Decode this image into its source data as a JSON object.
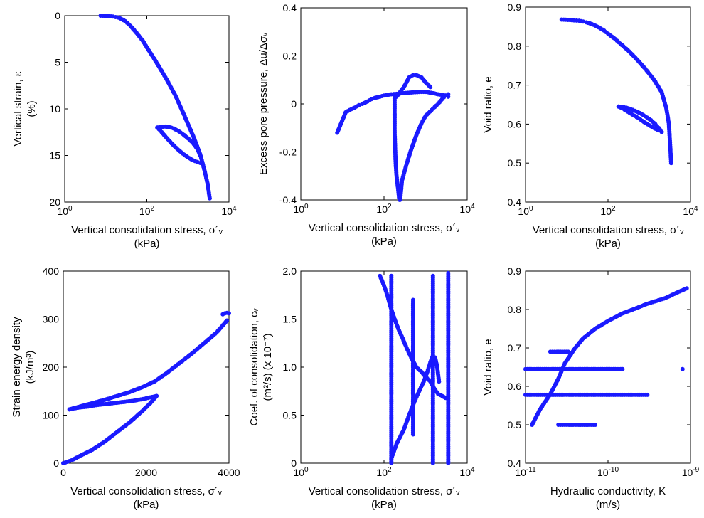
{
  "figure": {
    "title": "",
    "marker_color": "#1a1aff",
    "axis_color": "#000000"
  },
  "chart_data": [
    {
      "id": "strain",
      "type": "scatter",
      "xscale": "log",
      "xlim": [
        1,
        10000
      ],
      "ylim": [
        0,
        20
      ],
      "y_inverted": true,
      "xticks": [
        {
          "v": 1,
          "base": "10",
          "exp": "0"
        },
        {
          "v": 100,
          "base": "10",
          "exp": "2"
        },
        {
          "v": 10000,
          "base": "10",
          "exp": "4"
        }
      ],
      "yticks": [
        0,
        5,
        10,
        15,
        20
      ],
      "xlabel": [
        "Vertical consolidation stress, σ´ᵥ",
        "(kPa)"
      ],
      "ylabel": [
        "Vertical strain, ε",
        "(%)"
      ],
      "series": [
        {
          "x": [
            7.5,
            12,
            15,
            20,
            25,
            30,
            40,
            60,
            80,
            100,
            150,
            200,
            300,
            500,
            800,
            1000,
            1400,
            2000,
            2600,
            3000,
            3400
          ],
          "y": [
            0,
            0.05,
            0.1,
            0.2,
            0.4,
            0.6,
            1.1,
            2.0,
            2.7,
            3.4,
            4.6,
            5.5,
            6.8,
            8.6,
            10.6,
            11.6,
            13.1,
            14.9,
            16.8,
            18.0,
            19.6
          ]
        },
        {
          "x": [
            2000,
            1700,
            1400,
            1100,
            800,
            600,
            450,
            350,
            280,
            220,
            180
          ],
          "y": [
            15.0,
            14.3,
            13.8,
            13.3,
            12.8,
            12.4,
            12.1,
            11.95,
            11.9,
            11.95,
            12.0
          ]
        },
        {
          "x": [
            180,
            230,
            300,
            400,
            550,
            750,
            1000,
            1300,
            1700,
            2000
          ],
          "y": [
            12.0,
            12.5,
            13.1,
            13.7,
            14.3,
            14.8,
            15.2,
            15.5,
            15.7,
            15.8
          ]
        }
      ]
    },
    {
      "id": "pore",
      "type": "scatter",
      "xscale": "log",
      "xlim": [
        1,
        10000
      ],
      "ylim": [
        -0.4,
        0.4
      ],
      "xticks": [
        {
          "v": 1,
          "base": "10",
          "exp": "0"
        },
        {
          "v": 100,
          "base": "10",
          "exp": "2"
        },
        {
          "v": 10000,
          "base": "10",
          "exp": "4"
        }
      ],
      "yticks": [
        "-0.4",
        "-0.2",
        "0",
        "0.2",
        "0.4"
      ],
      "xlabel": [
        "Vertical consolidation stress, σ´ᵥ",
        "(kPa)"
      ],
      "ylabel": [
        "Excess pore pressure, Δu/Δσᵥ"
      ],
      "series": [
        {
          "x": [
            7.5,
            12,
            15,
            20,
            25,
            30,
            40,
            50,
            60,
            80,
            100,
            150,
            200,
            300,
            500,
            800,
            1000,
            1500,
            2000,
            3000,
            3500
          ],
          "y": [
            -0.12,
            -0.035,
            -0.025,
            -0.015,
            -0.005,
            0.0,
            0.01,
            0.02,
            0.025,
            0.03,
            0.035,
            0.04,
            0.042,
            0.045,
            0.048,
            0.05,
            0.05,
            0.045,
            0.04,
            0.035,
            0.03
          ]
        },
        {
          "x": [
            200,
            300,
            400,
            500,
            600,
            800,
            1000,
            1300
          ],
          "y": [
            0.03,
            0.07,
            0.11,
            0.12,
            0.12,
            0.11,
            0.09,
            0.07
          ]
        },
        {
          "x": [
            180,
            180,
            180,
            185,
            190,
            200,
            220,
            230,
            240,
            250,
            260,
            270
          ],
          "y": [
            0.03,
            -0.05,
            -0.12,
            -0.18,
            -0.24,
            -0.3,
            -0.36,
            -0.39,
            -0.4,
            -0.38,
            -0.35,
            -0.32
          ]
        },
        {
          "x": [
            270,
            350,
            450,
            600,
            800,
            1000,
            1500,
            2000,
            2500,
            3000,
            3500
          ],
          "y": [
            -0.32,
            -0.25,
            -0.19,
            -0.13,
            -0.08,
            -0.05,
            -0.02,
            0.0,
            0.02,
            0.035,
            0.04
          ]
        }
      ]
    },
    {
      "id": "void",
      "type": "scatter",
      "xscale": "log",
      "xlim": [
        1,
        10000
      ],
      "ylim": [
        0.4,
        0.9
      ],
      "xticks": [
        {
          "v": 1,
          "base": "10",
          "exp": "0"
        },
        {
          "v": 100,
          "base": "10",
          "exp": "2"
        },
        {
          "v": 10000,
          "base": "10",
          "exp": "4"
        }
      ],
      "yticks": [
        "0.4",
        "0.5",
        "0.6",
        "0.7",
        "0.8",
        "0.9"
      ],
      "xlabel": [
        "Vertical consolidation stress, σ´ᵥ",
        "(kPa)"
      ],
      "ylabel": [
        "Void ratio, e"
      ],
      "series": [
        {
          "x": [
            7.5,
            12,
            15,
            20,
            25,
            30,
            40,
            60,
            80,
            100,
            150,
            200,
            300,
            500,
            800,
            1000,
            1400,
            2000,
            2600,
            3000,
            3400
          ],
          "y": [
            0.868,
            0.867,
            0.866,
            0.865,
            0.863,
            0.861,
            0.857,
            0.848,
            0.84,
            0.832,
            0.818,
            0.806,
            0.79,
            0.766,
            0.742,
            0.729,
            0.709,
            0.682,
            0.64,
            0.6,
            0.5
          ]
        },
        {
          "x": [
            2000,
            1700,
            1400,
            1100,
            800,
            600,
            450,
            350,
            280,
            220,
            180
          ],
          "y": [
            0.58,
            0.59,
            0.6,
            0.61,
            0.62,
            0.628,
            0.634,
            0.639,
            0.642,
            0.644,
            0.645
          ]
        },
        {
          "x": [
            180,
            230,
            300,
            400,
            550,
            750,
            1000,
            1300,
            1700,
            2000
          ],
          "y": [
            0.645,
            0.64,
            0.632,
            0.624,
            0.615,
            0.605,
            0.597,
            0.59,
            0.584,
            0.58
          ]
        }
      ]
    },
    {
      "id": "energy",
      "type": "scatter",
      "xscale": "linear",
      "xlim": [
        0,
        4000
      ],
      "ylim": [
        0,
        400
      ],
      "xticks": [
        {
          "v": 0,
          "base": "0",
          "exp": ""
        },
        {
          "v": 2000,
          "base": "2000",
          "exp": ""
        },
        {
          "v": 4000,
          "base": "4000",
          "exp": ""
        }
      ],
      "yticks": [
        0,
        100,
        200,
        300,
        400
      ],
      "xlabel": [
        "Vertical consolidation stress, σ´ᵥ",
        "(kPa)"
      ],
      "ylabel": [
        "Strain energy density",
        "(kJ/m³)"
      ],
      "series": [
        {
          "x": [
            0,
            200,
            400,
            700,
            1000,
            1300,
            1600,
            1900,
            2100,
            2250
          ],
          "y": [
            0,
            6,
            15,
            28,
            45,
            65,
            85,
            108,
            125,
            140
          ]
        },
        {
          "x": [
            2250,
            2000,
            1700,
            1400,
            1100,
            800,
            600,
            400,
            250,
            150
          ],
          "y": [
            140,
            135,
            130,
            127,
            124,
            121,
            118,
            116,
            114,
            112
          ]
        },
        {
          "x": [
            150,
            400,
            700,
            1000,
            1300,
            1600,
            1900,
            2200,
            2500,
            2800,
            3100,
            3400,
            3700,
            3950
          ],
          "y": [
            112,
            118,
            125,
            132,
            140,
            148,
            158,
            170,
            188,
            208,
            228,
            250,
            272,
            297
          ]
        },
        {
          "x": [
            3850,
            3900,
            3950,
            4000
          ],
          "y": [
            310,
            312,
            313,
            312
          ]
        }
      ]
    },
    {
      "id": "cv",
      "type": "scatter",
      "xscale": "log",
      "xlim": [
        1,
        10000
      ],
      "ylim": [
        0,
        2.0
      ],
      "xticks": [
        {
          "v": 1,
          "base": "10",
          "exp": "0"
        },
        {
          "v": 100,
          "base": "10",
          "exp": "2"
        },
        {
          "v": 10000,
          "base": "10",
          "exp": "4"
        }
      ],
      "yticks": [
        "0",
        "0.5",
        "1.0",
        "1.5",
        "2.0"
      ],
      "xlabel": [
        "Vertical consolidation stress, σ´ᵥ",
        "(kPa)"
      ],
      "ylabel": [
        "Coef. of consolidation, cᵥ",
        "(m²/s) (x 10⁻⁷)"
      ],
      "series": [
        {
          "x": [
            80,
            100,
            120,
            150,
            180,
            220,
            280,
            350,
            450,
            600,
            800,
            1000,
            1300,
            1600,
            2000,
            2500,
            3000
          ],
          "y": [
            1.95,
            1.85,
            1.75,
            1.6,
            1.5,
            1.4,
            1.3,
            1.2,
            1.1,
            1.0,
            0.95,
            0.9,
            0.85,
            0.78,
            0.72,
            0.7,
            0.68
          ]
        },
        {
          "x": [
            150,
            200,
            300,
            400,
            550,
            700,
            900,
            1100,
            1300,
            1500,
            1700,
            1900,
            2100
          ],
          "y": [
            0.05,
            0.2,
            0.35,
            0.5,
            0.65,
            0.75,
            0.85,
            0.95,
            1.05,
            1.12,
            1.1,
            1.0,
            0.85
          ]
        },
        {
          "x": [
            150,
            150,
            150,
            150,
            150,
            150,
            150,
            150,
            150,
            150,
            150
          ],
          "y": [
            0.0,
            0.2,
            0.4,
            0.6,
            0.8,
            1.0,
            1.2,
            1.4,
            1.6,
            1.8,
            1.95
          ]
        },
        {
          "x": [
            500,
            500,
            500,
            500,
            500,
            500,
            500,
            500
          ],
          "y": [
            0.3,
            0.5,
            0.7,
            0.9,
            1.1,
            1.3,
            1.5,
            1.7
          ]
        },
        {
          "x": [
            1500,
            1500,
            1500,
            1500,
            1500,
            1500,
            1500,
            1500,
            1500
          ],
          "y": [
            0.0,
            0.25,
            0.5,
            0.75,
            1.0,
            1.25,
            1.5,
            1.75,
            1.95
          ]
        },
        {
          "x": [
            3500,
            3500,
            3500,
            3500,
            3500,
            3500,
            3500,
            3500,
            3500
          ],
          "y": [
            0.0,
            0.25,
            0.5,
            0.75,
            1.0,
            1.25,
            1.5,
            1.75,
            1.98
          ]
        }
      ]
    },
    {
      "id": "hydraulic",
      "type": "scatter",
      "xscale": "log",
      "xlim": [
        1e-11,
        1e-09
      ],
      "ylim": [
        0.4,
        0.9
      ],
      "xticks": [
        {
          "v": 1e-11,
          "base": "10",
          "exp": "-11"
        },
        {
          "v": 1e-10,
          "base": "10",
          "exp": "-10"
        },
        {
          "v": 1e-09,
          "base": "10",
          "exp": "-9"
        }
      ],
      "yticks": [
        "0.4",
        "0.5",
        "0.6",
        "0.7",
        "0.8",
        "0.9"
      ],
      "xlabel": [
        "Hydraulic conductivity, K",
        "(m/s)"
      ],
      "ylabel": [
        "Void ratio, e"
      ],
      "series": [
        {
          "x": [
            1.2e-11,
            1.5e-11,
            2e-11,
            2.5e-11,
            3e-11,
            4e-11,
            5e-11,
            7e-11,
            1e-10,
            1.5e-10,
            2e-10,
            3e-10,
            5e-10,
            7e-10,
            9e-10
          ],
          "y": [
            0.5,
            0.54,
            0.58,
            0.62,
            0.66,
            0.7,
            0.725,
            0.75,
            0.77,
            0.79,
            0.8,
            0.815,
            0.83,
            0.845,
            0.855
          ]
        },
        {
          "x": [
            1e-11,
            1.3e-11,
            1.7e-11,
            2.2e-11,
            3e-11,
            4e-11,
            6e-11,
            1e-10,
            1.5e-10
          ],
          "y": [
            0.645,
            0.645,
            0.645,
            0.645,
            0.645,
            0.645,
            0.645,
            0.645,
            0.645
          ]
        },
        {
          "x": [
            1e-11,
            1.3e-11,
            1.7e-11,
            2.2e-11,
            3e-11,
            4e-11,
            6e-11,
            1e-10,
            1.5e-10,
            3e-10
          ],
          "y": [
            0.578,
            0.578,
            0.578,
            0.578,
            0.578,
            0.578,
            0.578,
            0.578,
            0.578,
            0.578
          ]
        },
        {
          "x": [
            2e-11,
            2.4e-11,
            2.8e-11,
            3.3e-11
          ],
          "y": [
            0.69,
            0.69,
            0.69,
            0.69
          ]
        },
        {
          "x": [
            2.5e-11,
            3e-11,
            4e-11,
            7e-11
          ],
          "y": [
            0.5,
            0.5,
            0.5,
            0.5
          ]
        },
        {
          "x": [
            8e-10
          ],
          "y": [
            0.645
          ]
        }
      ]
    }
  ]
}
